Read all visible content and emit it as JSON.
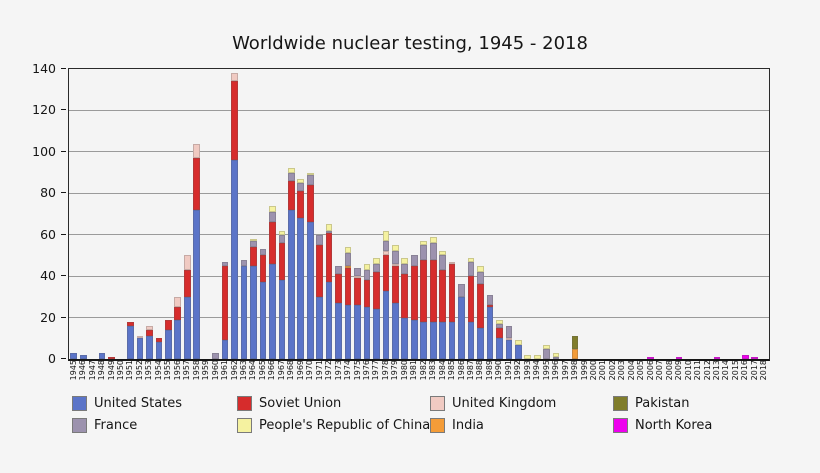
{
  "title": "Worldwide nuclear testing, 1945 - 2018",
  "y_axis": {
    "min": 0,
    "max": 140,
    "step": 20,
    "tick_labels": [
      "0",
      "20",
      "40",
      "60",
      "80",
      "100",
      "120",
      "140"
    ]
  },
  "legend": {
    "rows": [
      [
        "United States",
        "Soviet Union",
        "United Kingdom",
        "Pakistan"
      ],
      [
        "France",
        "People's Republic of China",
        "India",
        "North Korea"
      ]
    ]
  },
  "chart_data": {
    "type": "bar",
    "stacked": true,
    "title": "Worldwide nuclear testing, 1945 - 2018",
    "xlabel": "",
    "ylabel": "",
    "ylim": [
      0,
      140
    ],
    "grid": true,
    "legend_position": "bottom",
    "x": [
      1945,
      1946,
      1947,
      1948,
      1949,
      1950,
      1951,
      1952,
      1953,
      1954,
      1955,
      1956,
      1957,
      1958,
      1959,
      1960,
      1961,
      1962,
      1963,
      1964,
      1965,
      1966,
      1967,
      1968,
      1969,
      1970,
      1971,
      1972,
      1973,
      1974,
      1975,
      1976,
      1977,
      1978,
      1979,
      1980,
      1981,
      1982,
      1983,
      1984,
      1985,
      1986,
      1987,
      1988,
      1989,
      1990,
      1991,
      1992,
      1993,
      1994,
      1995,
      1996,
      1997,
      1998,
      1999,
      2000,
      2001,
      2002,
      2003,
      2004,
      2005,
      2006,
      2007,
      2008,
      2009,
      2010,
      2011,
      2012,
      2013,
      2014,
      2015,
      2016,
      2017,
      2018
    ],
    "series": [
      {
        "name": "United States",
        "color": "#5B74C8",
        "values": [
          3,
          2,
          0,
          3,
          0,
          0,
          16,
          10,
          11,
          8,
          14,
          19,
          30,
          72,
          0,
          0,
          9,
          96,
          45,
          45,
          37,
          46,
          38,
          72,
          68,
          66,
          30,
          37,
          27,
          26,
          26,
          25,
          24,
          33,
          27,
          20,
          19,
          18,
          18,
          18,
          18,
          30,
          18,
          15,
          25,
          10,
          9,
          7,
          0,
          0,
          0,
          0,
          0,
          0,
          0,
          0,
          0,
          0,
          0,
          0,
          0,
          0,
          0,
          0,
          0,
          0,
          0,
          0,
          0,
          0,
          0,
          0,
          0,
          0
        ]
      },
      {
        "name": "Soviet Union",
        "color": "#D62C2C",
        "values": [
          0,
          0,
          0,
          0,
          1,
          0,
          2,
          0,
          3,
          2,
          5,
          6,
          13,
          25,
          0,
          0,
          36,
          38,
          0,
          9,
          13,
          20,
          18,
          14,
          13,
          18,
          25,
          24,
          14,
          18,
          13,
          13,
          18,
          17,
          18,
          21,
          26,
          30,
          30,
          25,
          28,
          0,
          22,
          21,
          1,
          5,
          0,
          0,
          0,
          0,
          0,
          0,
          0,
          0,
          0,
          0,
          0,
          0,
          0,
          0,
          0,
          0,
          0,
          0,
          0,
          0,
          0,
          0,
          0,
          0,
          0,
          0,
          0,
          0
        ]
      },
      {
        "name": "United Kingdom",
        "color": "#F0CAC2",
        "values": [
          0,
          0,
          0,
          0,
          0,
          0,
          0,
          1,
          2,
          0,
          0,
          5,
          7,
          7,
          0,
          0,
          0,
          4,
          0,
          0,
          0,
          0,
          0,
          0,
          0,
          0,
          0,
          0,
          0,
          0,
          1,
          0,
          0,
          2,
          1,
          0,
          0,
          0,
          0,
          0,
          1,
          0,
          0,
          0,
          0,
          0,
          1,
          0,
          0,
          0,
          0,
          0,
          0,
          0,
          0,
          0,
          0,
          0,
          0,
          0,
          0,
          0,
          0,
          0,
          0,
          0,
          0,
          0,
          0,
          0,
          0,
          0,
          0,
          0
        ]
      },
      {
        "name": "India",
        "color": "#F49C38",
        "values": [
          0,
          0,
          0,
          0,
          0,
          0,
          0,
          0,
          0,
          0,
          0,
          0,
          0,
          0,
          0,
          0,
          0,
          0,
          0,
          0,
          0,
          0,
          0,
          0,
          0,
          0,
          0,
          0,
          0,
          1,
          0,
          0,
          0,
          0,
          0,
          0,
          0,
          0,
          0,
          0,
          0,
          0,
          0,
          0,
          0,
          0,
          0,
          0,
          0,
          0,
          0,
          0,
          0,
          5,
          0,
          0,
          0,
          0,
          0,
          0,
          0,
          0,
          0,
          0,
          0,
          0,
          0,
          0,
          0,
          0,
          0,
          0,
          0,
          0
        ]
      },
      {
        "name": "France",
        "color": "#9C92AE",
        "values": [
          0,
          0,
          0,
          0,
          0,
          0,
          0,
          0,
          0,
          0,
          0,
          0,
          0,
          0,
          0,
          3,
          2,
          0,
          3,
          3,
          3,
          5,
          4,
          4,
          4,
          5,
          5,
          1,
          4,
          6,
          4,
          5,
          4,
          5,
          6,
          5,
          5,
          7,
          8,
          7,
          0,
          6,
          7,
          6,
          5,
          2,
          6,
          0,
          0,
          0,
          5,
          1,
          0,
          0,
          0,
          0,
          0,
          0,
          0,
          0,
          0,
          0,
          0,
          0,
          0,
          0,
          0,
          0,
          0,
          0,
          0,
          0,
          0,
          0
        ]
      },
      {
        "name": "People's Republic of China",
        "color": "#F5F2A0",
        "values": [
          0,
          0,
          0,
          0,
          0,
          0,
          0,
          0,
          0,
          0,
          0,
          0,
          0,
          0,
          0,
          0,
          0,
          0,
          0,
          1,
          0,
          3,
          2,
          2,
          2,
          1,
          0,
          3,
          0,
          3,
          0,
          3,
          3,
          5,
          3,
          3,
          0,
          2,
          3,
          2,
          0,
          0,
          2,
          3,
          0,
          2,
          0,
          2,
          2,
          2,
          2,
          2,
          0,
          0,
          0,
          0,
          0,
          0,
          0,
          0,
          0,
          0,
          0,
          0,
          0,
          0,
          0,
          0,
          0,
          0,
          0,
          0,
          0,
          0
        ]
      },
      {
        "name": "Pakistan",
        "color": "#807D2B",
        "values": [
          0,
          0,
          0,
          0,
          0,
          0,
          0,
          0,
          0,
          0,
          0,
          0,
          0,
          0,
          0,
          0,
          0,
          0,
          0,
          0,
          0,
          0,
          0,
          0,
          0,
          0,
          0,
          0,
          0,
          0,
          0,
          0,
          0,
          0,
          0,
          0,
          0,
          0,
          0,
          0,
          0,
          0,
          0,
          0,
          0,
          0,
          0,
          0,
          0,
          0,
          0,
          0,
          0,
          6,
          0,
          0,
          0,
          0,
          0,
          0,
          0,
          0,
          0,
          0,
          0,
          0,
          0,
          0,
          0,
          0,
          0,
          0,
          0,
          0
        ]
      },
      {
        "name": "North Korea",
        "color": "#EE00EE",
        "values": [
          0,
          0,
          0,
          0,
          0,
          0,
          0,
          0,
          0,
          0,
          0,
          0,
          0,
          0,
          0,
          0,
          0,
          0,
          0,
          0,
          0,
          0,
          0,
          0,
          0,
          0,
          0,
          0,
          0,
          0,
          0,
          0,
          0,
          0,
          0,
          0,
          0,
          0,
          0,
          0,
          0,
          0,
          0,
          0,
          0,
          0,
          0,
          0,
          0,
          0,
          0,
          0,
          0,
          0,
          0,
          0,
          0,
          0,
          0,
          0,
          0,
          1,
          0,
          0,
          1,
          0,
          0,
          0,
          1,
          0,
          0,
          2,
          1,
          0
        ]
      }
    ]
  }
}
